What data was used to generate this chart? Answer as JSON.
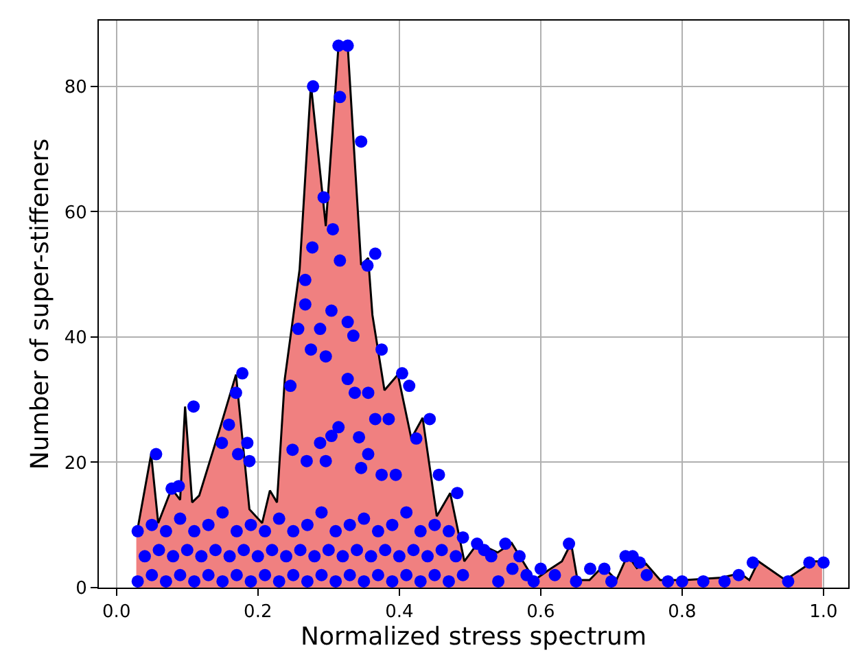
{
  "chart_data": {
    "type": "area",
    "xlabel": "Normalized stress spectrum",
    "ylabel": "Number of super-stiffeners",
    "xlim": [
      -0.025,
      1.035
    ],
    "ylim": [
      0,
      90.5
    ],
    "xticks": [
      {
        "value": 0,
        "label": "0.0"
      },
      0.2,
      0.4,
      0.6,
      0.8,
      {
        "value": 1,
        "label": "1.0"
      }
    ],
    "yticks": [
      0,
      20,
      40,
      60,
      80
    ],
    "grid": true,
    "series": [
      {
        "color": "#f08080",
        "marker": "none",
        "x": [
          0.028,
          0.049,
          0.059,
          0.078,
          0.09,
          0.097,
          0.107,
          0.117,
          0.146,
          0.169,
          0.188,
          0.206,
          0.217,
          0.227,
          0.238,
          0.259,
          0.275,
          0.296,
          0.314,
          0.327,
          0.346,
          0.356,
          0.362,
          0.379,
          0.398,
          0.417,
          0.433,
          0.453,
          0.472,
          0.492,
          0.511,
          0.539,
          0.559,
          0.591,
          0.61,
          0.63,
          0.643,
          0.652,
          0.669,
          0.688,
          0.707,
          0.723,
          0.736,
          0.749,
          0.769,
          0.804,
          0.856,
          0.882,
          0.895,
          0.908,
          0.946,
          0.985,
          0.998
        ],
        "values": [
          8.2,
          21.3,
          10.3,
          15.8,
          14,
          28.9,
          13.6,
          14.7,
          25.3,
          34,
          12.5,
          10.3,
          15.5,
          13.6,
          33.3,
          50.8,
          80.3,
          57.7,
          86.5,
          86.5,
          51.5,
          52.6,
          43.5,
          31.5,
          34,
          23.8,
          27.1,
          11.4,
          15.1,
          4.2,
          7.1,
          5.6,
          7.1,
          1.2,
          2.7,
          4.2,
          7.1,
          1.2,
          1.2,
          3.4,
          1.2,
          5.2,
          3.1,
          3.8,
          1.2,
          1.2,
          1.6,
          2.3,
          1.2,
          4.2,
          1.2,
          4.2,
          4.2
        ]
      },
      {
        "type": "scatter",
        "marker": "circle",
        "color": "#0000ff",
        "x": [
          0.278,
          0.314,
          0.327,
          0.316,
          0.346,
          0.293,
          0.306,
          0.277,
          0.316,
          0.366,
          0.355,
          0.267,
          0.267,
          0.304,
          0.327,
          0.178,
          0.109,
          0.169,
          0.257,
          0.288,
          0.335,
          0.275,
          0.296,
          0.375,
          0.327,
          0.337,
          0.356,
          0.404,
          0.414,
          0.246,
          0.366,
          0.385,
          0.443,
          0.314,
          0.304,
          0.343,
          0.288,
          0.424,
          0.159,
          0.149,
          0.185,
          0.188,
          0.172,
          0.249,
          0.269,
          0.296,
          0.346,
          0.356,
          0.375,
          0.395,
          0.456,
          0.482,
          0.056,
          0.088,
          0.078,
          0.03,
          0.05,
          0.07,
          0.09,
          0.11,
          0.13,
          0.15,
          0.17,
          0.19,
          0.21,
          0.23,
          0.25,
          0.27,
          0.29,
          0.31,
          0.33,
          0.35,
          0.37,
          0.39,
          0.41,
          0.43,
          0.45,
          0.47,
          0.49,
          0.04,
          0.06,
          0.08,
          0.1,
          0.12,
          0.14,
          0.16,
          0.18,
          0.2,
          0.22,
          0.24,
          0.26,
          0.28,
          0.3,
          0.32,
          0.34,
          0.36,
          0.38,
          0.4,
          0.42,
          0.44,
          0.46,
          0.48,
          0.03,
          0.05,
          0.07,
          0.09,
          0.11,
          0.13,
          0.15,
          0.17,
          0.19,
          0.21,
          0.23,
          0.25,
          0.27,
          0.29,
          0.31,
          0.33,
          0.35,
          0.37,
          0.39,
          0.41,
          0.43,
          0.45,
          0.47,
          0.49,
          0.51,
          0.52,
          0.53,
          0.55,
          0.57,
          0.56,
          0.59,
          0.6,
          0.62,
          0.64,
          0.65,
          0.67,
          0.69,
          0.72,
          0.73,
          0.74,
          0.75,
          0.78,
          0.8,
          0.83,
          0.86,
          0.88,
          0.9,
          0.95,
          0.98,
          1.0,
          0.54,
          0.58,
          0.7
        ],
        "values": [
          80,
          86.5,
          86.5,
          78.3,
          71.2,
          62.3,
          57.2,
          54.3,
          52.2,
          53.3,
          51.4,
          49.1,
          45.2,
          44.2,
          42.4,
          34.2,
          28.9,
          31.1,
          41.3,
          41.3,
          40.2,
          38,
          36.9,
          38,
          33.3,
          31.1,
          31.1,
          34.2,
          32.2,
          32.2,
          26.9,
          26.9,
          26.9,
          25.6,
          24.2,
          24,
          23.1,
          23.8,
          26,
          23.1,
          23.1,
          20.2,
          21.3,
          22,
          20.2,
          20.2,
          19.1,
          21.3,
          18,
          18,
          18,
          15.1,
          21.3,
          16.2,
          15.8,
          1,
          2,
          1,
          2,
          1,
          2,
          1,
          2,
          1,
          2,
          1,
          2,
          1,
          2,
          1,
          2,
          1,
          2,
          1,
          2,
          1,
          2,
          1,
          2,
          5,
          6,
          5,
          6,
          5,
          6,
          5,
          6,
          5,
          6,
          5,
          6,
          5,
          6,
          5,
          6,
          5,
          6,
          5,
          6,
          5,
          6,
          5,
          9,
          10,
          9,
          11,
          9,
          10,
          12,
          9,
          10,
          9,
          11,
          9,
          10,
          12,
          9,
          10,
          11,
          9,
          10,
          12,
          9,
          10,
          9,
          8,
          7,
          6,
          5,
          7,
          5,
          3,
          1,
          3,
          2,
          7,
          1,
          3,
          3,
          5,
          5,
          4,
          2,
          1,
          1,
          1,
          1,
          2,
          4,
          1,
          4,
          4,
          1,
          2,
          1
        ]
      }
    ]
  }
}
